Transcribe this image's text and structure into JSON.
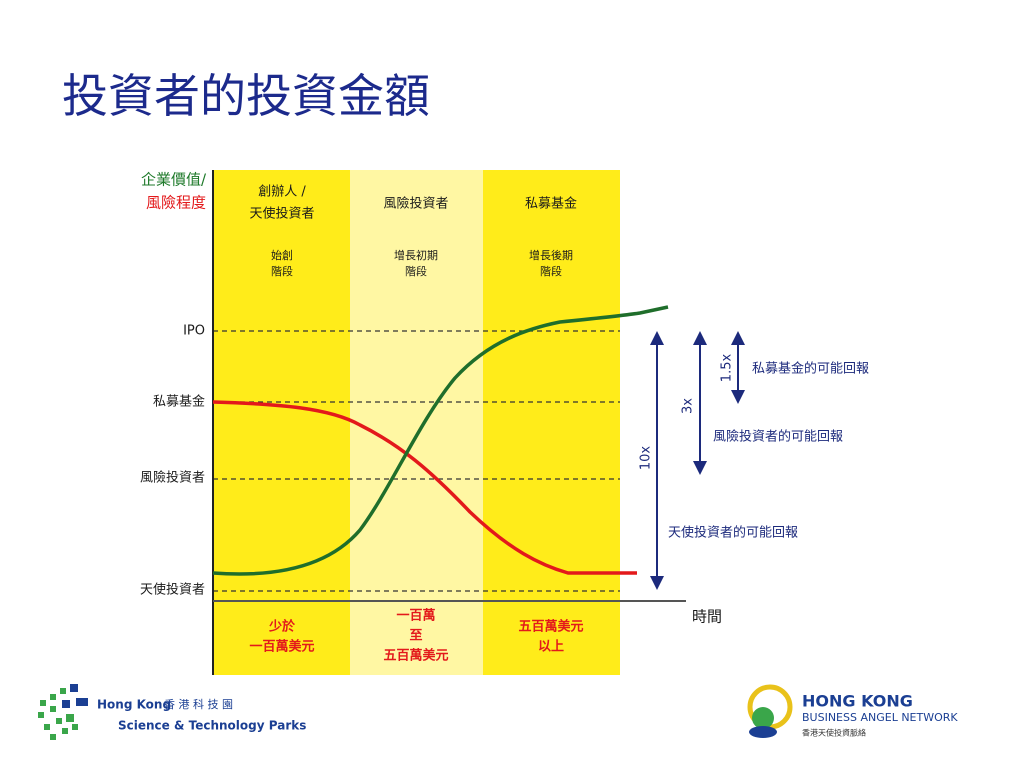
{
  "title": "投資者的投資金額",
  "axis": {
    "y_title": [
      "企業價值/",
      "風險程度"
    ],
    "x_title": "時間"
  },
  "levels": [
    "IPO",
    "私募基金",
    "風險投資者",
    "天使投資者"
  ],
  "columns": [
    {
      "header": [
        "創辦人 /",
        "天使投資者"
      ],
      "stage": [
        "始創",
        "階段"
      ],
      "amount": [
        "少於",
        "一百萬美元"
      ]
    },
    {
      "header": [
        "風險投資者"
      ],
      "stage": [
        "增長初期",
        "階段"
      ],
      "amount": [
        "一百萬",
        "至",
        "五百萬美元"
      ]
    },
    {
      "header": [
        "私募基金"
      ],
      "stage": [
        "增長後期",
        "階段"
      ],
      "amount": [
        "五百萬美元",
        "以上"
      ]
    }
  ],
  "returns": [
    {
      "multiplier": "1.5x",
      "label": "私募基金的可能回報"
    },
    {
      "multiplier": "3x",
      "label": "風險投資者的可能回報"
    },
    {
      "multiplier": "10x",
      "label": "天使投資者的可能回報"
    }
  ],
  "logos": {
    "left": [
      "Hong Kong",
      "香 港 科 技 園",
      "Science & Technology Parks"
    ],
    "right": [
      "HONG KONG",
      "BUSINESS ANGEL NETWORK",
      "香港天使投資脈絡"
    ]
  }
}
